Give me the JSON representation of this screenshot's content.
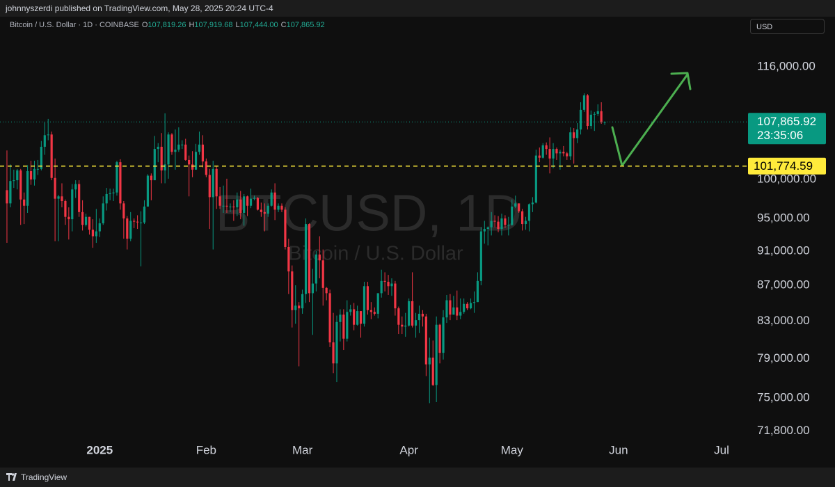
{
  "header": {
    "publisher": "johnnyszerdi published on TradingView.com, May 28, 2025 20:24 UTC-4",
    "symbol": "Bitcoin / U.S. Dollar · 1D · COINBASE",
    "ohlc": [
      {
        "key": "O",
        "value": "107,819.26"
      },
      {
        "key": "H",
        "value": "107,919.68"
      },
      {
        "key": "L",
        "value": "107,444.00"
      },
      {
        "key": "C",
        "value": "107,865.92"
      }
    ],
    "currency": "USD"
  },
  "chart_data": {
    "type": "candlestick",
    "watermark": "BTCUSD, 1D",
    "watermark_subtitle": "Bitcoin / U.S. Dollar",
    "up_color": "#089981",
    "down_color": "#f23645",
    "log_scale": true,
    "ylim": [
      71000,
      123440
    ],
    "yticks": [
      {
        "value": 71800,
        "label": "71,800.00"
      },
      {
        "value": 75000,
        "label": "75,000.00"
      },
      {
        "value": 79000,
        "label": "79,000.00"
      },
      {
        "value": 83000,
        "label": "83,000.00"
      },
      {
        "value": 87000,
        "label": "87,000.00"
      },
      {
        "value": 91000,
        "label": "91,000.00"
      },
      {
        "value": 95000,
        "label": "95,000.00"
      },
      {
        "value": 100000,
        "label": "100,000.00"
      },
      {
        "value": 116000,
        "label": "116,000.00"
      }
    ],
    "xlim": [
      -0.4,
      215.7
    ],
    "xticks": [
      {
        "value": 27,
        "label": "2025"
      },
      {
        "value": 58,
        "label": "Feb"
      },
      {
        "value": 86,
        "label": "Mar"
      },
      {
        "value": 117,
        "label": "Apr"
      },
      {
        "value": 147,
        "label": "May"
      },
      {
        "value": 178,
        "label": "Jun"
      },
      {
        "value": 208,
        "label": "Jul"
      }
    ],
    "last_price": {
      "value": 107865.92,
      "label": "107,865.92",
      "countdown": "23:35:06",
      "color": "#089981"
    },
    "horizontal_line": {
      "value": 101774.59,
      "label": "101,774.59",
      "color": "#ffeb3b"
    },
    "open": [
      98600,
      96900,
      99800,
      99900,
      101200,
      97400,
      96600,
      101100,
      100000,
      101400,
      101400,
      104400,
      106000,
      106100,
      100200,
      97500,
      97800,
      97200,
      95200,
      94900,
      98700,
      99400,
      95800,
      94200,
      95200,
      93600,
      92800,
      93400,
      94400,
      96900,
      98100,
      98200,
      98300,
      102300,
      96900,
      95000,
      92500,
      94700,
      94600,
      94500,
      94500,
      96500,
      100500,
      99900,
      104100,
      104400,
      101200,
      102000,
      106100,
      103700,
      104000,
      104700,
      104700,
      102600,
      102000,
      101300,
      103700,
      104700,
      102400,
      100600,
      97700,
      101400,
      97800,
      96600,
      96600,
      96500,
      96500,
      96400,
      97400,
      95700,
      97800,
      96600,
      97500,
      97600,
      96100,
      95800,
      95600,
      96600,
      98300,
      96100,
      96600,
      96100,
      91500,
      88600,
      84200,
      84700,
      84400,
      86000,
      94300,
      86100,
      87200,
      90600,
      89900,
      86700,
      86100,
      80700,
      78500,
      82900,
      83700,
      81100,
      84000,
      84300,
      82600,
      84100,
      82700,
      86900,
      84200,
      84000,
      83800,
      86100,
      87500,
      87400,
      86900,
      87200,
      84400,
      82600,
      82400,
      82500,
      85200,
      82500,
      83100,
      83800,
      83500,
      78400,
      79100,
      76300,
      82600,
      79600,
      83400,
      85300,
      83700,
      84500,
      83600,
      84000,
      84900,
      84400,
      85000,
      85100,
      87500,
      93400,
      93700,
      93900,
      94700,
      94600,
      93700,
      95000,
      94200,
      94200,
      96500,
      96900,
      95900,
      94300,
      94700,
      96800,
      97000,
      103200,
      102900,
      104600,
      104100,
      102800,
      104100,
      103500,
      103700,
      103500,
      103100,
      106400,
      105600,
      106800,
      109600,
      111700,
      107300,
      108900,
      109000,
      109400,
      107819.26
    ],
    "high": [
      103900,
      102000,
      101300,
      101400,
      101400,
      98300,
      101900,
      102500,
      102500,
      102600,
      105200,
      107800,
      108300,
      106500,
      102800,
      98000,
      99500,
      97400,
      96400,
      99400,
      99900,
      99900,
      97300,
      95600,
      95200,
      94900,
      96200,
      95000,
      97800,
      98900,
      98800,
      98800,
      102500,
      102700,
      97200,
      95300,
      95800,
      95000,
      95400,
      95900,
      97300,
      100700,
      100800,
      105900,
      104900,
      106300,
      109100,
      106400,
      106300,
      106800,
      107100,
      105300,
      105500,
      103200,
      103800,
      104800,
      106500,
      106000,
      102800,
      101400,
      102500,
      101700,
      99000,
      99200,
      100100,
      96900,
      97300,
      98300,
      98500,
      98100,
      97900,
      98800,
      97900,
      97700,
      97000,
      96900,
      96900,
      98700,
      99500,
      96900,
      96900,
      96400,
      92500,
      89300,
      87000,
      85100,
      86500,
      95000,
      94400,
      88900,
      91000,
      92800,
      91200,
      86800,
      86500,
      83900,
      83600,
      84300,
      84300,
      85300,
      84800,
      85000,
      84700,
      84100,
      87400,
      87400,
      85100,
      84500,
      86100,
      88800,
      88500,
      88200,
      87800,
      87500,
      84600,
      83500,
      83900,
      85500,
      88500,
      83900,
      84700,
      84200,
      83800,
      81200,
      80900,
      83500,
      82700,
      84200,
      85900,
      86000,
      85800,
      86400,
      85500,
      85500,
      85100,
      85500,
      86300,
      88500,
      93900,
      94700,
      94000,
      95800,
      95400,
      95300,
      95600,
      95400,
      95200,
      97400,
      97900,
      96900,
      96200,
      95200,
      96900,
      97700,
      104000,
      104300,
      104900,
      105000,
      105700,
      104900,
      104300,
      104000,
      104500,
      103700,
      107100,
      107000,
      107700,
      110700,
      112000,
      111900,
      109500,
      109300,
      110400,
      110700,
      107919.68
    ],
    "low": [
      92000,
      96400,
      98900,
      98700,
      94200,
      94300,
      95700,
      99300,
      99200,
      100600,
      101200,
      103300,
      105300,
      99900,
      92200,
      92200,
      96400,
      94200,
      92400,
      93400,
      97600,
      95200,
      93500,
      94000,
      93000,
      91400,
      92000,
      92700,
      94200,
      96000,
      97300,
      97200,
      97900,
      96100,
      92500,
      91200,
      92200,
      93800,
      93700,
      89200,
      94300,
      96500,
      97300,
      99900,
      102300,
      99500,
      99500,
      100100,
      103300,
      101300,
      103700,
      104100,
      102500,
      97800,
      100300,
      101300,
      103300,
      101600,
      100300,
      93700,
      91200,
      96200,
      96200,
      95700,
      95700,
      95800,
      94700,
      95300,
      94900,
      94100,
      95300,
      96300,
      97300,
      96000,
      95200,
      93400,
      95200,
      96500,
      94800,
      95800,
      95800,
      91200,
      86000,
      82300,
      82700,
      78200,
      83800,
      85000,
      85100,
      81500,
      86300,
      87800,
      84700,
      85300,
      80200,
      77500,
      76600,
      80800,
      79900,
      80800,
      83600,
      82000,
      82500,
      81200,
      82400,
      83700,
      83200,
      83600,
      83300,
      85600,
      86300,
      85900,
      85800,
      83600,
      81600,
      81600,
      81300,
      82400,
      82300,
      81200,
      81700,
      82400,
      77200,
      74500,
      76200,
      74600,
      78500,
      78900,
      82800,
      83100,
      83700,
      83100,
      83200,
      83800,
      84200,
      84300,
      83900,
      85100,
      87000,
      91900,
      91700,
      92900,
      93900,
      93300,
      92900,
      93800,
      92900,
      94100,
      96300,
      95700,
      93500,
      93600,
      93400,
      95800,
      96900,
      102300,
      102800,
      103300,
      100800,
      101500,
      102600,
      101300,
      103100,
      102600,
      102600,
      102100,
      104900,
      106100,
      109300,
      106800,
      106900,
      106600,
      108700,
      107600,
      107444
    ],
    "close": [
      96900,
      99800,
      99900,
      101200,
      97400,
      96600,
      101100,
      100000,
      101400,
      101400,
      104400,
      106000,
      106100,
      100200,
      97500,
      97800,
      97200,
      95200,
      94900,
      98700,
      99400,
      95800,
      94200,
      95200,
      93600,
      92800,
      93400,
      94400,
      96900,
      98100,
      98200,
      98300,
      102300,
      96900,
      95000,
      92500,
      94700,
      94600,
      94500,
      94500,
      96500,
      100500,
      99900,
      104100,
      104400,
      101200,
      102000,
      106100,
      103700,
      104000,
      104700,
      104700,
      102600,
      102000,
      101300,
      103700,
      104700,
      102400,
      100600,
      97700,
      101400,
      97800,
      96600,
      96600,
      96500,
      96500,
      96400,
      97400,
      95700,
      97800,
      96600,
      97500,
      97600,
      96100,
      95800,
      95600,
      96600,
      98300,
      96100,
      96600,
      96100,
      91500,
      88600,
      84200,
      84700,
      84400,
      86000,
      94300,
      86100,
      87200,
      90600,
      89900,
      86700,
      86100,
      80700,
      78500,
      82900,
      83700,
      81100,
      84000,
      84300,
      82600,
      84100,
      82700,
      86900,
      84200,
      84000,
      83800,
      86100,
      87500,
      87400,
      86900,
      87200,
      84400,
      82600,
      82400,
      82500,
      85200,
      82500,
      83100,
      83800,
      83500,
      78400,
      79100,
      76300,
      82600,
      79600,
      83400,
      85300,
      83700,
      84500,
      83600,
      84000,
      84900,
      84400,
      85000,
      85100,
      87500,
      93400,
      93700,
      93900,
      94700,
      94600,
      93700,
      95000,
      94200,
      94200,
      96500,
      96900,
      95900,
      94300,
      94700,
      96800,
      97000,
      103200,
      102900,
      104600,
      104100,
      102800,
      104100,
      103500,
      103700,
      103500,
      103100,
      106400,
      105600,
      106800,
      109600,
      111700,
      107300,
      108900,
      109000,
      109400,
      107800,
      107865.92
    ]
  },
  "footer": {
    "brand": "TradingView"
  }
}
